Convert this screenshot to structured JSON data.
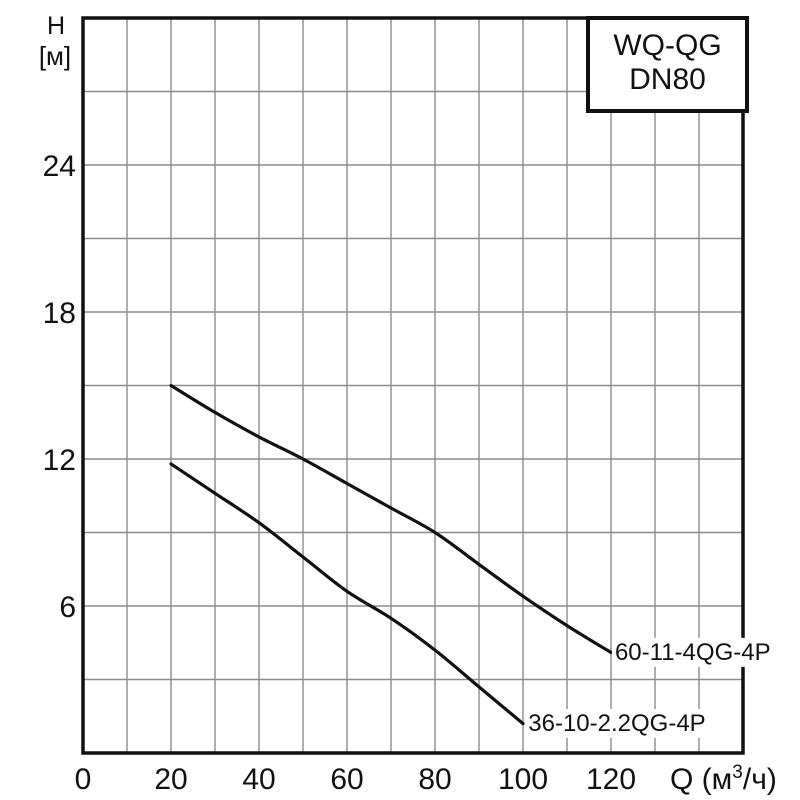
{
  "figure": {
    "background": "#ffffff",
    "text_color": "#111111",
    "grid_color": "#8c8c8c",
    "frame_color": "#111111",
    "curve_color": "#111111"
  },
  "chart_data": {
    "type": "line",
    "title_box": {
      "lines": [
        "WQ-QG",
        "DN80"
      ]
    },
    "ylabel_lines": [
      "H",
      "[м]"
    ],
    "xlabel": {
      "text": "Q (м³/ч)",
      "parts": [
        "Q (м",
        "3",
        "/ч)"
      ]
    },
    "xlim": [
      0,
      150
    ],
    "ylim": [
      0,
      30
    ],
    "x_grid_step": 10,
    "y_grid_step": 3,
    "x_tick_labels": [
      0,
      20,
      40,
      60,
      80,
      100,
      120
    ],
    "y_tick_labels": [
      6,
      12,
      18,
      24
    ],
    "grid": true,
    "legend_position": "labels-on-curve-ends",
    "series": [
      {
        "name": "60-11-4QG-4P",
        "points": [
          [
            20,
            15.0
          ],
          [
            30,
            13.9
          ],
          [
            40,
            12.9
          ],
          [
            50,
            12.0
          ],
          [
            60,
            11.0
          ],
          [
            70,
            10.0
          ],
          [
            80,
            9.0
          ],
          [
            90,
            7.7
          ],
          [
            100,
            6.4
          ],
          [
            110,
            5.2
          ],
          [
            120,
            4.1
          ]
        ],
        "label_anchor": [
          120.9,
          3.8
        ]
      },
      {
        "name": "36-10-2.2QG-4P",
        "points": [
          [
            20,
            11.8
          ],
          [
            30,
            10.6
          ],
          [
            40,
            9.4
          ],
          [
            50,
            8.0
          ],
          [
            60,
            6.6
          ],
          [
            70,
            5.5
          ],
          [
            80,
            4.2
          ],
          [
            90,
            2.7
          ],
          [
            100,
            1.2
          ]
        ],
        "label_anchor": [
          101.2,
          0.9
        ]
      }
    ]
  }
}
